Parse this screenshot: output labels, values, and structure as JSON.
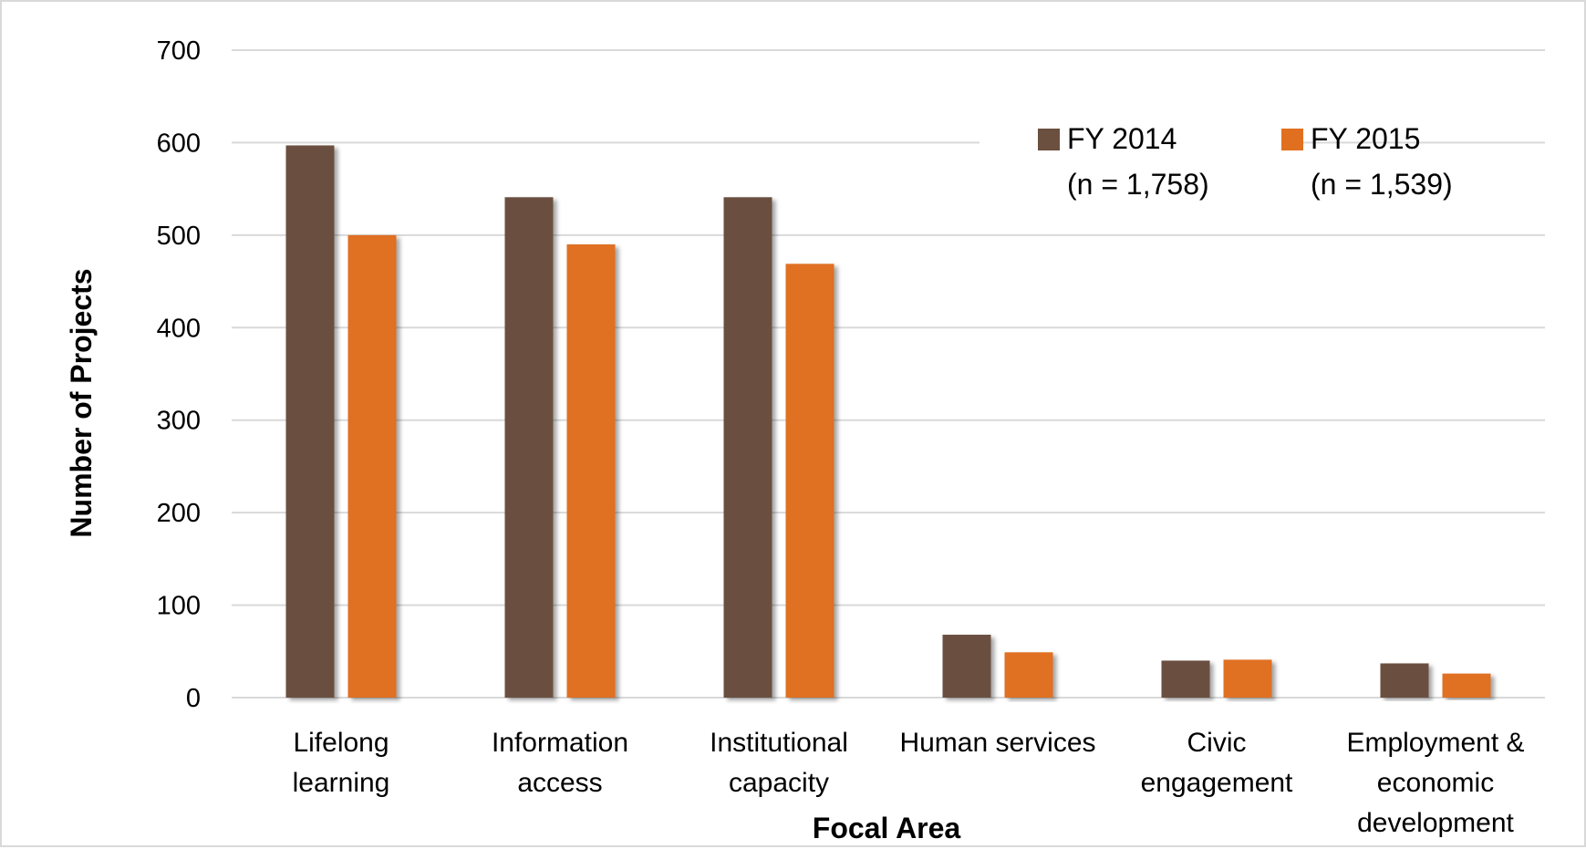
{
  "chart_data": {
    "type": "bar",
    "xlabel": "Focal Area",
    "ylabel": "Number of Projects",
    "ylim": [
      0,
      700
    ],
    "yticks": [
      0,
      100,
      200,
      300,
      400,
      500,
      600,
      700
    ],
    "grid": true,
    "legend_position": "top-right",
    "categories": [
      [
        "Lifelong",
        "learning"
      ],
      [
        "Information",
        "access"
      ],
      [
        "Institutional",
        "capacity"
      ],
      [
        "Human services"
      ],
      [
        "Civic",
        "engagement"
      ],
      [
        "Employment &",
        "economic",
        "development"
      ]
    ],
    "series": [
      {
        "name": "FY 2014",
        "note": "(n = 1,758)",
        "color": "#6b4f3f",
        "values": [
          597,
          541,
          541,
          68,
          40,
          37
        ]
      },
      {
        "name": "FY 2015",
        "note": "(n = 1,539)",
        "color": "#e07020",
        "values": [
          500,
          490,
          469,
          49,
          41,
          26
        ]
      }
    ]
  }
}
